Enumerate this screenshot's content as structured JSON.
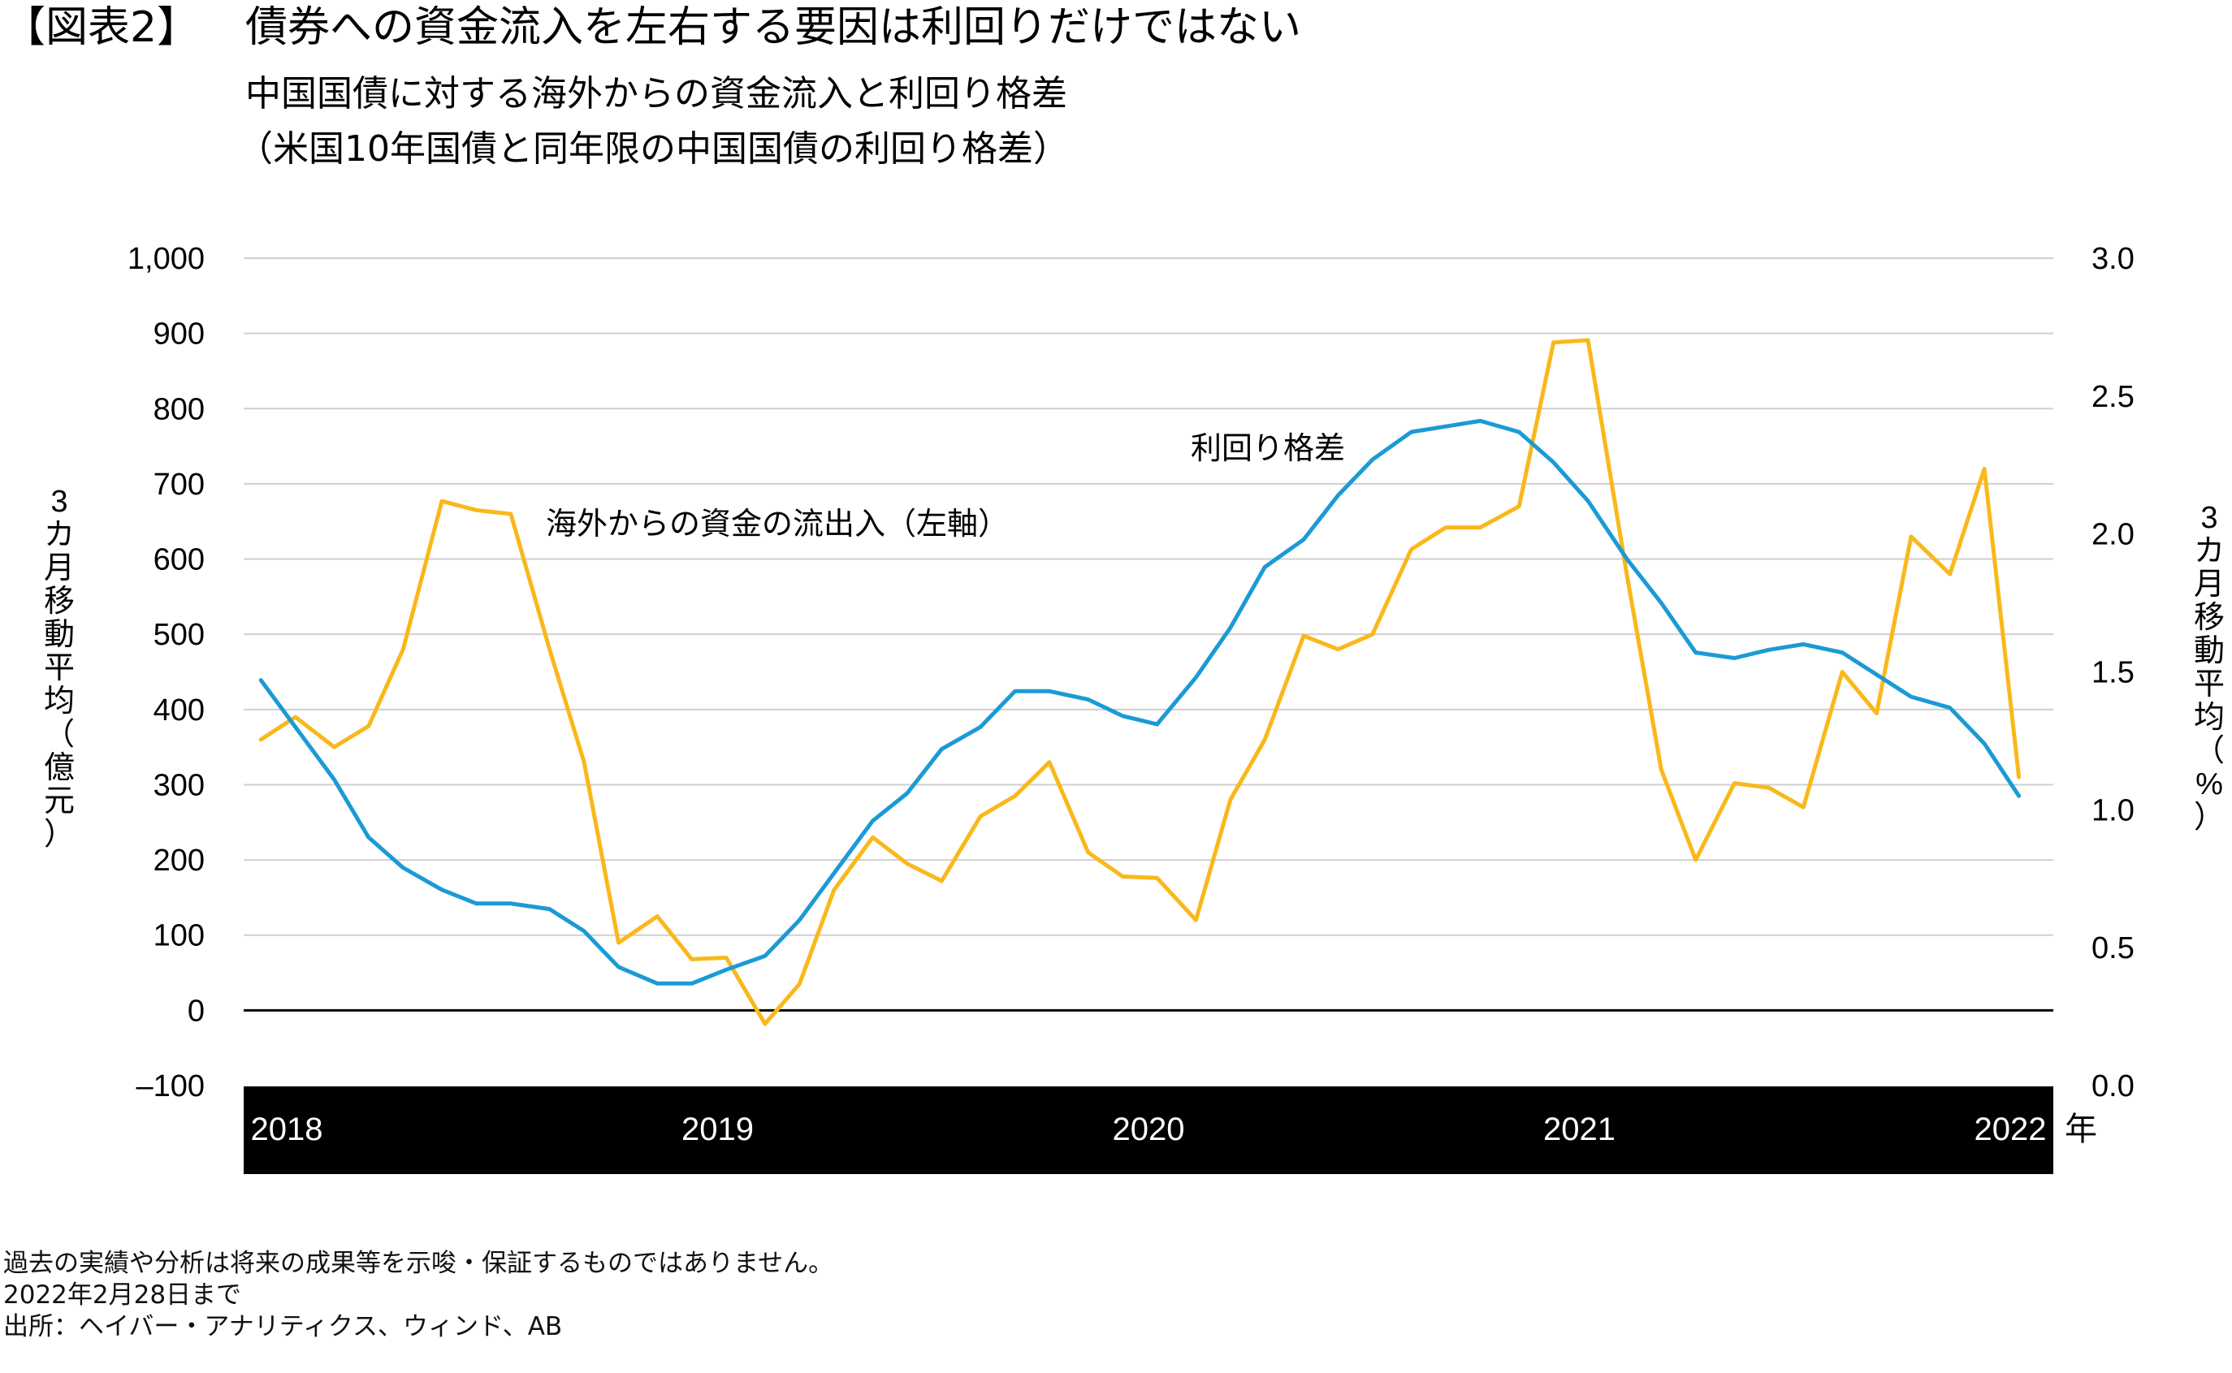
{
  "header": {
    "figure_label": "【図表2】",
    "title": "債券への資金流入を左右する要因は利回りだけではない",
    "subtitle": "中国国債に対する海外からの資金流入と利回り格差",
    "subtitle2": "（米国10年国債と同年限の中国国債の利回り格差）"
  },
  "chart_data": {
    "type": "line",
    "left_axis": {
      "label": "3カ月移動平均（億元）",
      "ylim": [
        -100,
        1000
      ],
      "ticks": [
        "1,000",
        "900",
        "800",
        "700",
        "600",
        "500",
        "400",
        "300",
        "200",
        "100",
        "0",
        "–100"
      ],
      "tick_values": [
        1000,
        900,
        800,
        700,
        600,
        500,
        400,
        300,
        200,
        100,
        0,
        -100
      ]
    },
    "right_axis": {
      "label": "3カ月移動平均（%）",
      "ylim": [
        0.0,
        3.0
      ],
      "ticks": [
        "3.0",
        "2.5",
        "2.0",
        "1.5",
        "1.0",
        "0.5",
        "0.0"
      ],
      "tick_values": [
        3.0,
        2.5,
        2.0,
        1.5,
        1.0,
        0.5,
        0.0
      ]
    },
    "x_axis": {
      "unit": "年",
      "range": [
        2018.0,
        2022.2
      ],
      "labels": [
        "2018",
        "2019",
        "2020",
        "2021",
        "2022"
      ],
      "label_values": [
        2018.1,
        2019.1,
        2020.1,
        2021.1,
        2022.1
      ]
    },
    "series": [
      {
        "name": "海外からの資金の流出入（左軸）",
        "axis": "left",
        "color": "#F9B81B",
        "x": [
          2018.04,
          2018.12,
          2018.21,
          2018.29,
          2018.37,
          2018.46,
          2018.54,
          2018.62,
          2018.71,
          2018.79,
          2018.87,
          2018.96,
          2019.04,
          2019.12,
          2019.21,
          2019.29,
          2019.37,
          2019.46,
          2019.54,
          2019.62,
          2019.71,
          2019.79,
          2019.87,
          2019.96,
          2020.04,
          2020.12,
          2020.21,
          2020.29,
          2020.37,
          2020.46,
          2020.54,
          2020.62,
          2020.71,
          2020.79,
          2020.87,
          2020.96,
          2021.04,
          2021.12,
          2021.21,
          2021.29,
          2021.37,
          2021.46,
          2021.54,
          2021.62,
          2021.71,
          2021.79,
          2021.87,
          2021.96,
          2022.04,
          2022.12
        ],
        "values": [
          360,
          390,
          350,
          378,
          480,
          677,
          665,
          660,
          480,
          330,
          90,
          125,
          68,
          70,
          -18,
          35,
          160,
          230,
          195,
          172,
          258,
          285,
          330,
          210,
          178,
          176,
          120,
          280,
          360,
          498,
          480,
          500,
          613,
          642,
          642,
          670,
          888,
          891,
          580,
          320,
          200,
          302,
          296,
          270,
          450,
          395,
          630,
          580,
          720,
          310
        ]
      },
      {
        "name": "利回り格差",
        "axis": "right",
        "color": "#1B9AD6",
        "x": [
          2018.04,
          2018.12,
          2018.21,
          2018.29,
          2018.37,
          2018.46,
          2018.54,
          2018.62,
          2018.71,
          2018.79,
          2018.87,
          2018.96,
          2019.04,
          2019.12,
          2019.21,
          2019.29,
          2019.37,
          2019.46,
          2019.54,
          2019.62,
          2019.71,
          2019.79,
          2019.87,
          2019.96,
          2020.04,
          2020.12,
          2020.21,
          2020.29,
          2020.37,
          2020.46,
          2020.54,
          2020.62,
          2020.71,
          2020.79,
          2020.87,
          2020.96,
          2021.04,
          2021.12,
          2021.21,
          2021.29,
          2021.37,
          2021.46,
          2021.54,
          2021.62,
          2021.71,
          2021.79,
          2021.87,
          2021.96,
          2022.04,
          2022.12
        ],
        "values": [
          1.47,
          1.3,
          1.11,
          0.9,
          0.79,
          0.71,
          0.66,
          0.66,
          0.64,
          0.56,
          0.43,
          0.37,
          0.37,
          0.42,
          0.47,
          0.6,
          0.77,
          0.96,
          1.06,
          1.22,
          1.3,
          1.43,
          1.43,
          1.4,
          1.34,
          1.31,
          1.48,
          1.66,
          1.88,
          1.98,
          2.14,
          2.27,
          2.37,
          2.39,
          2.41,
          2.37,
          2.26,
          2.12,
          1.91,
          1.75,
          1.57,
          1.55,
          1.58,
          1.6,
          1.57,
          1.49,
          1.41,
          1.37,
          1.24,
          1.05
        ]
      }
    ],
    "annotations": [
      {
        "text": "海外からの資金の流出入（左軸）",
        "series": "海外からの資金の流出入（左軸）"
      },
      {
        "text": "利回り格差",
        "series": "利回り格差"
      }
    ]
  },
  "footer": {
    "disclaimer": "過去の実績や分析は将来の成果等を示唆・保証するものではありません。",
    "date_note": "2022年2月28日まで",
    "source": "出所：ヘイバー・アナリティクス、ウィンド、AB"
  }
}
